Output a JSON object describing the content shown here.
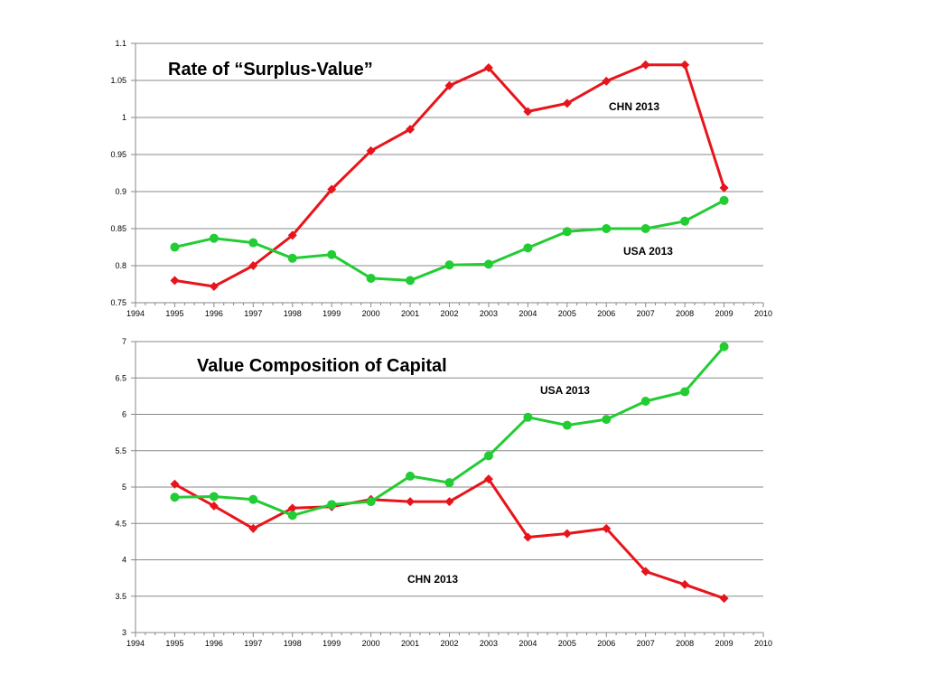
{
  "colors": {
    "chn": "#e8141b",
    "usa": "#22cc33",
    "grid": "#888888",
    "axis": "#888888"
  },
  "chart_data": [
    {
      "type": "line",
      "title": "Rate of “Surplus-Value”",
      "xlim": [
        1994,
        2010
      ],
      "xticks": [
        1994,
        1995,
        1996,
        1997,
        1998,
        1999,
        2000,
        2001,
        2002,
        2003,
        2004,
        2005,
        2006,
        2007,
        2008,
        2009,
        2010
      ],
      "ylim": [
        0.75,
        1.1
      ],
      "yticks": [
        0.75,
        0.8,
        0.85,
        0.9,
        0.95,
        1,
        1.05,
        1.1
      ],
      "ytick_labels": [
        "0.75",
        "0.8",
        "0.85",
        "0.9",
        "0.95",
        "1",
        "1.05",
        "1.1"
      ],
      "grid": true,
      "series": [
        {
          "name": "CHN 2013",
          "color": "chn",
          "marker": "diamond",
          "x": [
            1995,
            1996,
            1997,
            1998,
            1999,
            2000,
            2001,
            2002,
            2003,
            2004,
            2005,
            2006,
            2007,
            2008,
            2009
          ],
          "values": [
            0.78,
            0.772,
            0.8,
            0.841,
            0.903,
            0.955,
            0.984,
            1.043,
            1.067,
            1.008,
            1.019,
            1.049,
            1.071,
            1.071,
            0.905
          ]
        },
        {
          "name": "USA 2013",
          "color": "usa",
          "marker": "circle",
          "x": [
            1995,
            1996,
            1997,
            1998,
            1999,
            2000,
            2001,
            2002,
            2003,
            2004,
            2005,
            2006,
            2007,
            2008,
            2009
          ],
          "values": [
            0.825,
            0.837,
            0.831,
            0.81,
            0.815,
            0.783,
            0.78,
            0.801,
            0.802,
            0.824,
            0.846,
            0.85,
            0.85,
            0.86,
            0.888
          ]
        }
      ]
    },
    {
      "type": "line",
      "title": "Value Composition of Capital",
      "xlim": [
        1994,
        2010
      ],
      "xticks": [
        1994,
        1995,
        1996,
        1997,
        1998,
        1999,
        2000,
        2001,
        2002,
        2003,
        2004,
        2005,
        2006,
        2007,
        2008,
        2009,
        2010
      ],
      "ylim": [
        3,
        7
      ],
      "yticks": [
        3,
        3.5,
        4,
        4.5,
        5,
        5.5,
        6,
        6.5,
        7
      ],
      "ytick_labels": [
        "3",
        "3.5",
        "4",
        "4.5",
        "5",
        "5.5",
        "6",
        "6.5",
        "7"
      ],
      "grid": true,
      "series": [
        {
          "name": "CHN 2013",
          "color": "chn",
          "marker": "diamond",
          "x": [
            1995,
            1996,
            1997,
            1998,
            1999,
            2000,
            2001,
            2002,
            2003,
            2004,
            2005,
            2006,
            2007,
            2008,
            2009
          ],
          "values": [
            5.04,
            4.74,
            4.43,
            4.71,
            4.73,
            4.83,
            4.8,
            4.8,
            5.11,
            4.31,
            4.36,
            4.43,
            3.84,
            3.66,
            3.47
          ]
        },
        {
          "name": "USA 2013",
          "color": "usa",
          "marker": "circle",
          "x": [
            1995,
            1996,
            1997,
            1998,
            1999,
            2000,
            2001,
            2002,
            2003,
            2004,
            2005,
            2006,
            2007,
            2008,
            2009
          ],
          "values": [
            4.86,
            4.87,
            4.83,
            4.61,
            4.76,
            4.8,
            5.15,
            5.06,
            5.43,
            5.96,
            5.85,
            5.93,
            6.18,
            6.31,
            6.93
          ]
        }
      ]
    }
  ]
}
